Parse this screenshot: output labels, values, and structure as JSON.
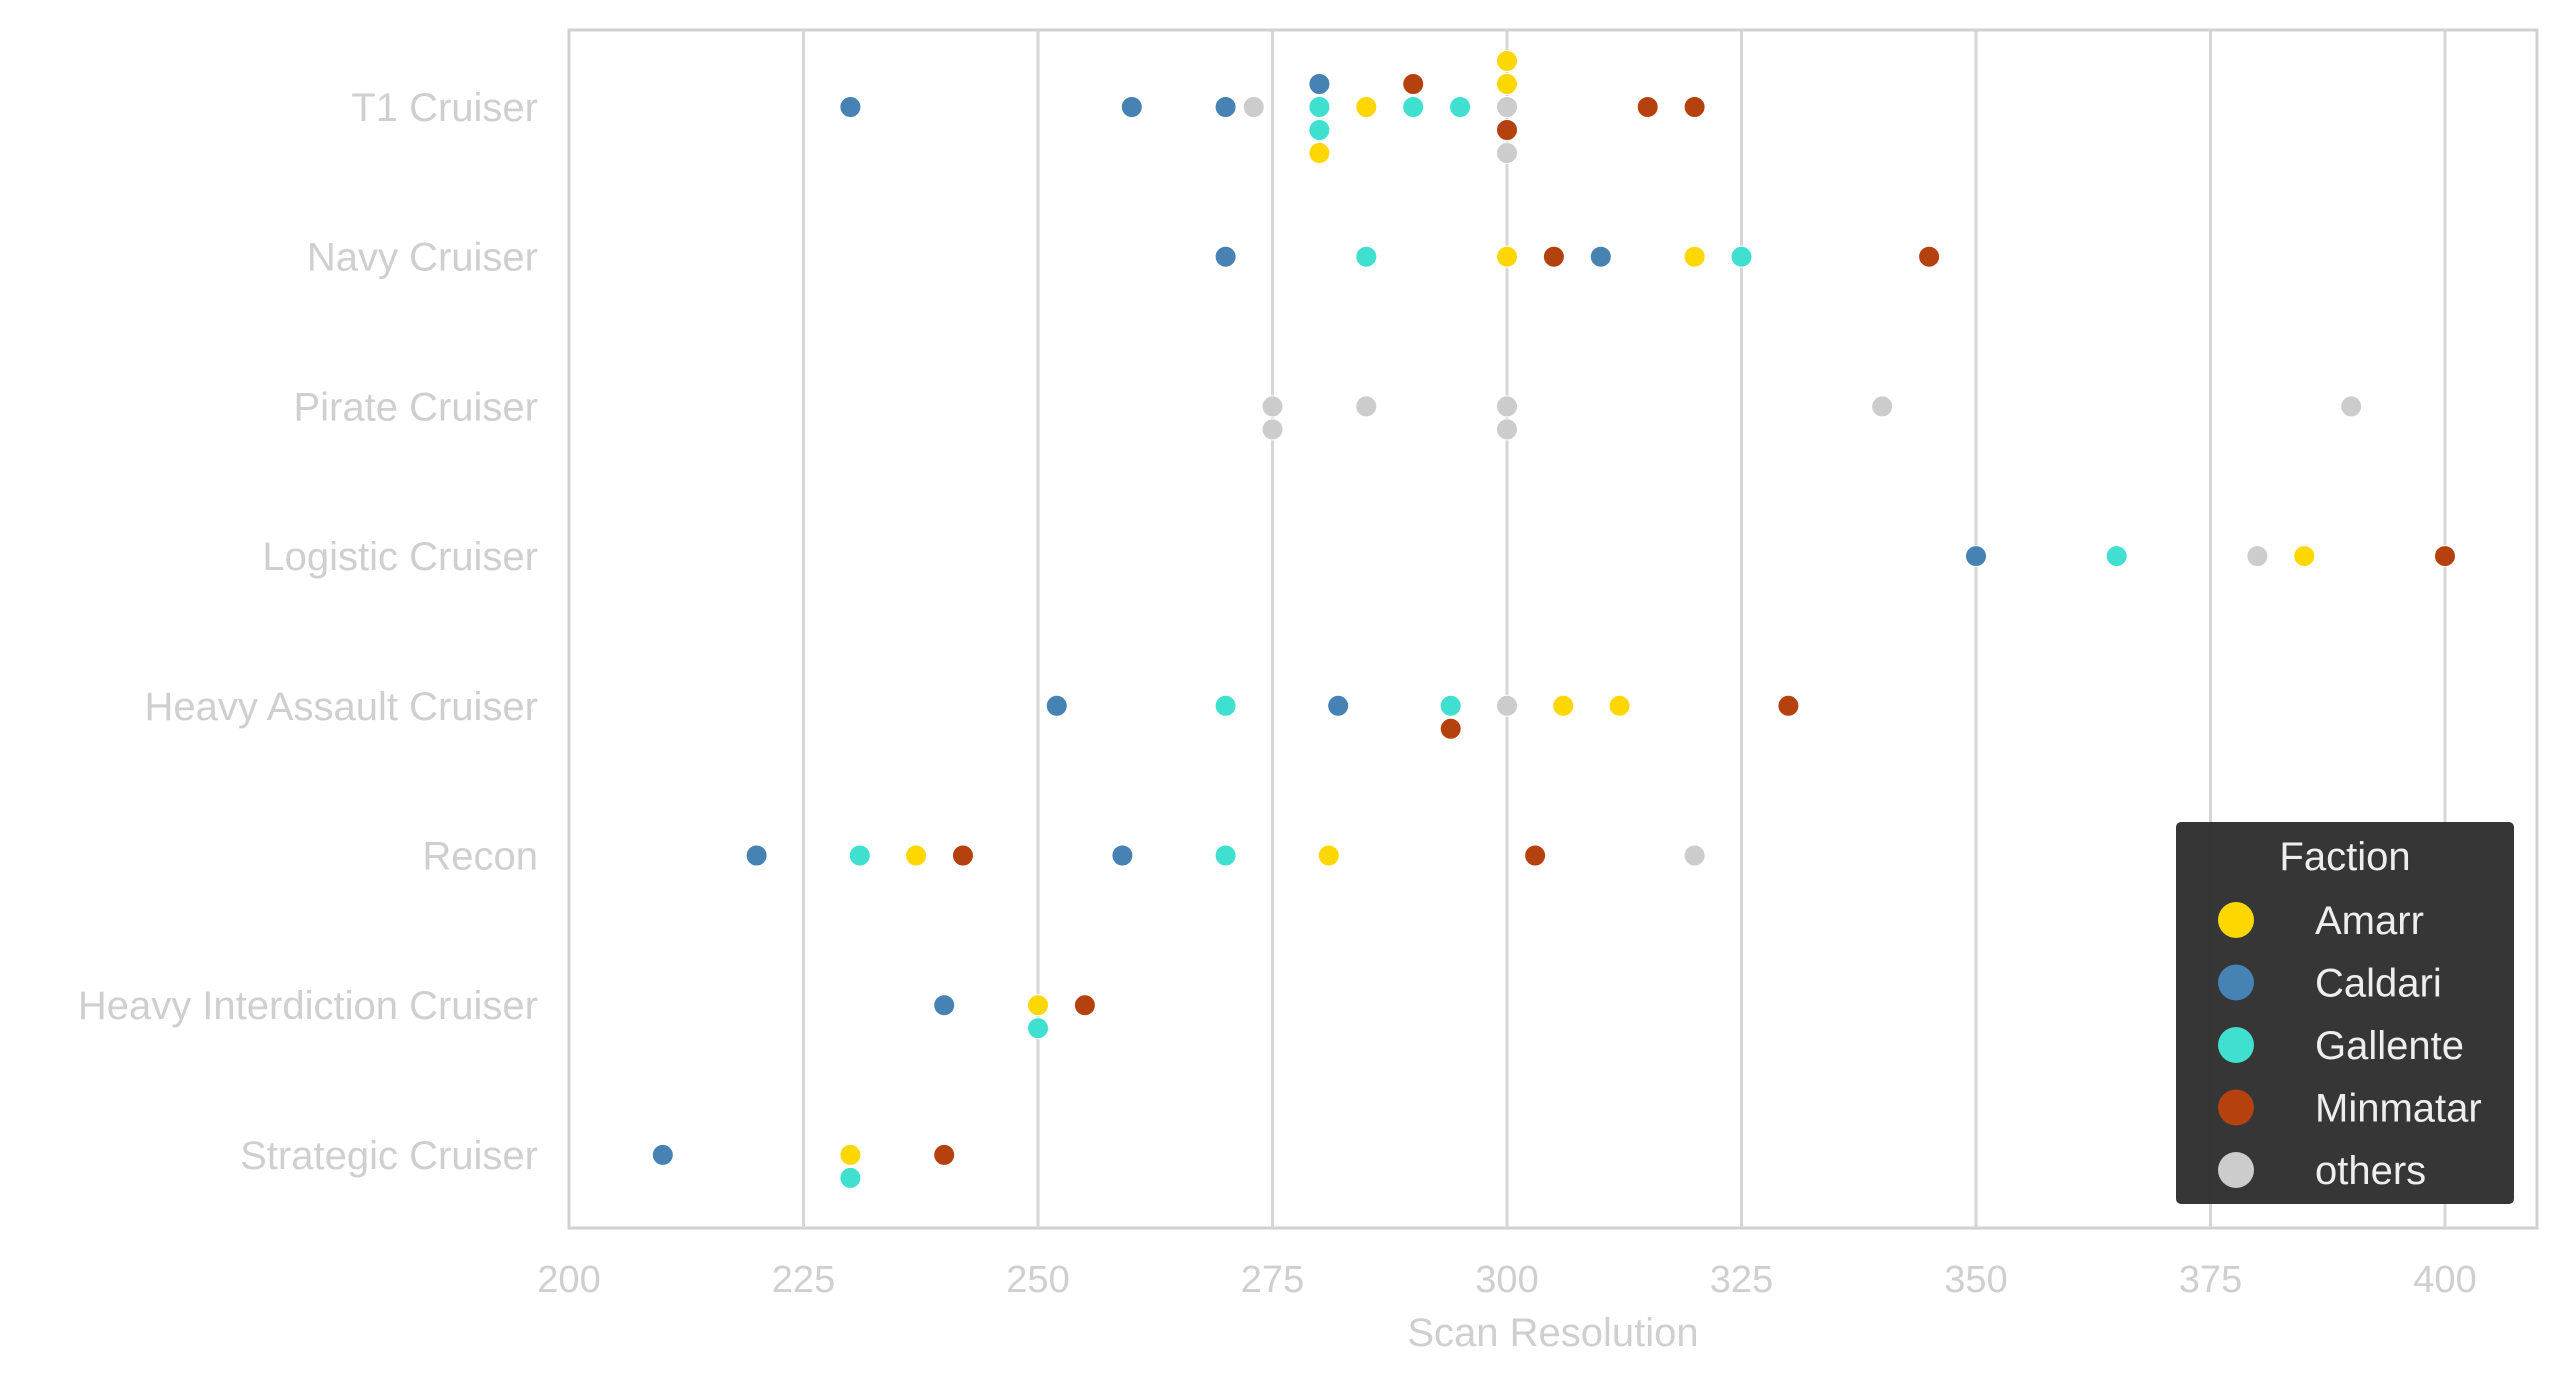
{
  "chart_data": {
    "type": "scatter",
    "subtype": "swarm",
    "title": "",
    "xlabel": "Scan Resolution",
    "ylabel": "",
    "xlim": [
      200,
      410
    ],
    "xticks": [
      200,
      225,
      250,
      275,
      300,
      325,
      350,
      375,
      400
    ],
    "grid": "vertical",
    "categories": [
      "T1 Cruiser",
      "Navy Cruiser",
      "Pirate Cruiser",
      "Logistic Cruiser",
      "Heavy Assault Cruiser",
      "Recon",
      "Heavy Interdiction Cruiser",
      "Strategic Cruiser"
    ],
    "legend": {
      "title": "Faction",
      "placement": "lower-right",
      "entries": [
        {
          "name": "Amarr",
          "color": "#ffd700"
        },
        {
          "name": "Caldari",
          "color": "#4682b4"
        },
        {
          "name": "Gallente",
          "color": "#40e0d0"
        },
        {
          "name": "Minmatar",
          "color": "#b5420e"
        },
        {
          "name": "others",
          "color": "#cccccc"
        }
      ]
    },
    "points": [
      {
        "category": "T1 Cruiser",
        "faction": "Caldari",
        "x": 230
      },
      {
        "category": "T1 Cruiser",
        "faction": "Caldari",
        "x": 260
      },
      {
        "category": "T1 Cruiser",
        "faction": "Caldari",
        "x": 270
      },
      {
        "category": "T1 Cruiser",
        "faction": "others",
        "x": 273
      },
      {
        "category": "T1 Cruiser",
        "faction": "Gallente",
        "x": 280
      },
      {
        "category": "T1 Cruiser",
        "faction": "Gallente",
        "x": 280
      },
      {
        "category": "T1 Cruiser",
        "faction": "Caldari",
        "x": 280
      },
      {
        "category": "T1 Cruiser",
        "faction": "Amarr",
        "x": 280
      },
      {
        "category": "T1 Cruiser",
        "faction": "Amarr",
        "x": 285
      },
      {
        "category": "T1 Cruiser",
        "faction": "Gallente",
        "x": 290
      },
      {
        "category": "T1 Cruiser",
        "faction": "Minmatar",
        "x": 290,
        "stack": -1
      },
      {
        "category": "T1 Cruiser",
        "faction": "Gallente",
        "x": 295
      },
      {
        "category": "T1 Cruiser",
        "faction": "others",
        "x": 300
      },
      {
        "category": "T1 Cruiser",
        "faction": "Minmatar",
        "x": 300
      },
      {
        "category": "T1 Cruiser",
        "faction": "Amarr",
        "x": 300
      },
      {
        "category": "T1 Cruiser",
        "faction": "others",
        "x": 300
      },
      {
        "category": "T1 Cruiser",
        "faction": "Amarr",
        "x": 300
      },
      {
        "category": "T1 Cruiser",
        "faction": "Minmatar",
        "x": 315
      },
      {
        "category": "T1 Cruiser",
        "faction": "Minmatar",
        "x": 320
      },
      {
        "category": "Navy Cruiser",
        "faction": "Caldari",
        "x": 270
      },
      {
        "category": "Navy Cruiser",
        "faction": "Gallente",
        "x": 285
      },
      {
        "category": "Navy Cruiser",
        "faction": "Amarr",
        "x": 300
      },
      {
        "category": "Navy Cruiser",
        "faction": "Minmatar",
        "x": 305
      },
      {
        "category": "Navy Cruiser",
        "faction": "Caldari",
        "x": 310
      },
      {
        "category": "Navy Cruiser",
        "faction": "Amarr",
        "x": 320
      },
      {
        "category": "Navy Cruiser",
        "faction": "Gallente",
        "x": 325
      },
      {
        "category": "Navy Cruiser",
        "faction": "Minmatar",
        "x": 345
      },
      {
        "category": "Pirate Cruiser",
        "faction": "others",
        "x": 275
      },
      {
        "category": "Pirate Cruiser",
        "faction": "others",
        "x": 275
      },
      {
        "category": "Pirate Cruiser",
        "faction": "others",
        "x": 285
      },
      {
        "category": "Pirate Cruiser",
        "faction": "others",
        "x": 300
      },
      {
        "category": "Pirate Cruiser",
        "faction": "others",
        "x": 300
      },
      {
        "category": "Pirate Cruiser",
        "faction": "others",
        "x": 340
      },
      {
        "category": "Pirate Cruiser",
        "faction": "others",
        "x": 390
      },
      {
        "category": "Logistic Cruiser",
        "faction": "Caldari",
        "x": 350
      },
      {
        "category": "Logistic Cruiser",
        "faction": "Gallente",
        "x": 365
      },
      {
        "category": "Logistic Cruiser",
        "faction": "others",
        "x": 380
      },
      {
        "category": "Logistic Cruiser",
        "faction": "Amarr",
        "x": 385
      },
      {
        "category": "Logistic Cruiser",
        "faction": "Minmatar",
        "x": 400
      },
      {
        "category": "Heavy Assault Cruiser",
        "faction": "Caldari",
        "x": 252
      },
      {
        "category": "Heavy Assault Cruiser",
        "faction": "Gallente",
        "x": 270
      },
      {
        "category": "Heavy Assault Cruiser",
        "faction": "Caldari",
        "x": 282
      },
      {
        "category": "Heavy Assault Cruiser",
        "faction": "Gallente",
        "x": 294
      },
      {
        "category": "Heavy Assault Cruiser",
        "faction": "Minmatar",
        "x": 294
      },
      {
        "category": "Heavy Assault Cruiser",
        "faction": "others",
        "x": 300
      },
      {
        "category": "Heavy Assault Cruiser",
        "faction": "Amarr",
        "x": 306
      },
      {
        "category": "Heavy Assault Cruiser",
        "faction": "Amarr",
        "x": 312
      },
      {
        "category": "Heavy Assault Cruiser",
        "faction": "Minmatar",
        "x": 330
      },
      {
        "category": "Recon",
        "faction": "Caldari",
        "x": 220
      },
      {
        "category": "Recon",
        "faction": "Gallente",
        "x": 231
      },
      {
        "category": "Recon",
        "faction": "Amarr",
        "x": 237
      },
      {
        "category": "Recon",
        "faction": "Minmatar",
        "x": 242
      },
      {
        "category": "Recon",
        "faction": "Caldari",
        "x": 259
      },
      {
        "category": "Recon",
        "faction": "Gallente",
        "x": 270
      },
      {
        "category": "Recon",
        "faction": "Amarr",
        "x": 281
      },
      {
        "category": "Recon",
        "faction": "Minmatar",
        "x": 303
      },
      {
        "category": "Recon",
        "faction": "others",
        "x": 320
      },
      {
        "category": "Heavy Interdiction Cruiser",
        "faction": "Caldari",
        "x": 240
      },
      {
        "category": "Heavy Interdiction Cruiser",
        "faction": "Amarr",
        "x": 250
      },
      {
        "category": "Heavy Interdiction Cruiser",
        "faction": "Gallente",
        "x": 250
      },
      {
        "category": "Heavy Interdiction Cruiser",
        "faction": "Minmatar",
        "x": 255
      },
      {
        "category": "Strategic Cruiser",
        "faction": "Caldari",
        "x": 210
      },
      {
        "category": "Strategic Cruiser",
        "faction": "Amarr",
        "x": 230
      },
      {
        "category": "Strategic Cruiser",
        "faction": "Gallente",
        "x": 230
      },
      {
        "category": "Strategic Cruiser",
        "faction": "Minmatar",
        "x": 240
      }
    ]
  }
}
